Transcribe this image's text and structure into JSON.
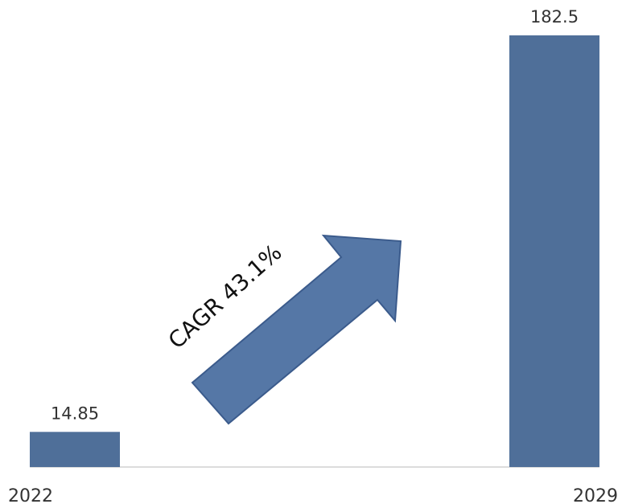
{
  "chart_data": {
    "type": "bar",
    "title": "",
    "xlabel": "",
    "ylabel": "",
    "categories": [
      "2022",
      "2029"
    ],
    "values": [
      14.85,
      182.5
    ],
    "value_labels": [
      "14.85",
      "182.5"
    ],
    "ylim": [
      0,
      182.5
    ],
    "grid": false,
    "legend": "none",
    "bar_color": "#4f6f99",
    "annotation": {
      "text": "CAGR 43.1%",
      "arrow_color": "#5577a6",
      "arrow_outline": "#3b5b8c"
    }
  }
}
